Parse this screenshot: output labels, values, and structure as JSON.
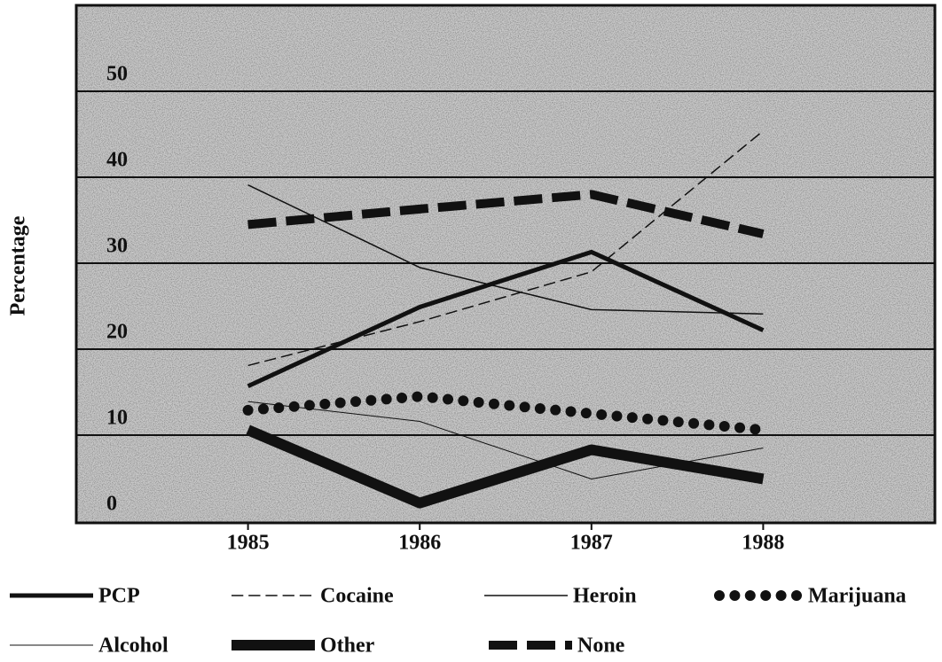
{
  "chart_data": {
    "type": "line",
    "y_label": "Percentage",
    "x": [
      1985,
      1986,
      1987,
      1988
    ],
    "xlim": [
      1984,
      1989
    ],
    "xticks": [
      1985,
      1986,
      1987,
      1988
    ],
    "ylim": [
      0,
      60
    ],
    "yticks": [
      0,
      10,
      20,
      30,
      40,
      50
    ],
    "grid": true,
    "series": [
      {
        "name": "PCP",
        "color": "#111111",
        "line_width": 5,
        "dash": "solid",
        "values": [
          15.7,
          24.9,
          31.3,
          22.2
        ]
      },
      {
        "name": "Cocaine",
        "color": "#111111",
        "line_width": 1.5,
        "dash": "dashed",
        "values": [
          18.1,
          23.2,
          29.0,
          45.4
        ]
      },
      {
        "name": "Heroin",
        "color": "#111111",
        "line_width": 1.5,
        "dash": "solid",
        "values": [
          39.1,
          29.5,
          24.6,
          24.1
        ]
      },
      {
        "name": "Marijuana",
        "color": "#111111",
        "line_width": 12,
        "dash": "dotted",
        "values": [
          12.9,
          14.5,
          12.5,
          10.6
        ]
      },
      {
        "name": "Alcohol",
        "color": "#111111",
        "line_width": 1,
        "dash": "solid",
        "values": [
          13.9,
          11.6,
          4.9,
          8.5
        ]
      },
      {
        "name": "Other",
        "color": "#111111",
        "line_width": 12,
        "dash": "solid",
        "values": [
          10.6,
          2.1,
          8.3,
          4.9
        ]
      },
      {
        "name": "None",
        "color": "#111111",
        "line_width": 10,
        "dash": "dashed",
        "values": [
          34.5,
          36.3,
          38.0,
          33.4
        ]
      }
    ]
  }
}
